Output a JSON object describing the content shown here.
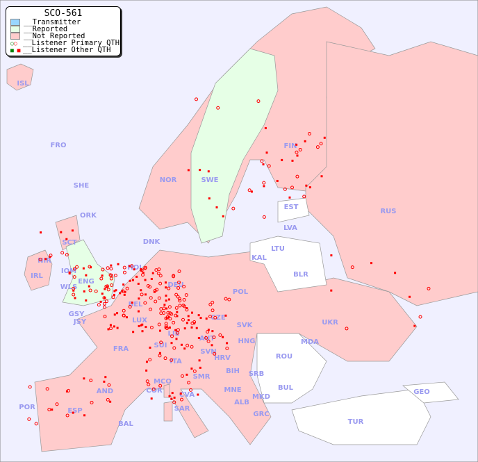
{
  "title": "SCO-561",
  "legend": [
    {
      "label": "__Transmitter",
      "color": "#99d6ff"
    },
    {
      "label": "__Reported",
      "color": "#e6ffe6"
    },
    {
      "label": "__Not Reported",
      "color": "#ffcccc"
    },
    {
      "label": "__Listener Primary QTH",
      "marker": "open-circle"
    },
    {
      "label": "__Listener Other QTH",
      "marker": "square"
    }
  ],
  "colors": {
    "sea": "#f0f0ff",
    "reported": "#e6ffe6",
    "not_reported": "#ffcccc",
    "no_data": "#ffffff",
    "marker": "#ff0000",
    "label": "#9a9af0"
  },
  "countries": {
    "reported": [
      "SWE",
      "ENG",
      "SCT",
      "WLS",
      "HOL"
    ],
    "white": [
      "LTU",
      "KAL",
      "BLR",
      "MDA",
      "ROU",
      "BUL",
      "TUR",
      "GEO",
      "EST"
    ]
  },
  "labels": [
    "ISL",
    "FRO",
    "SHE",
    "ORK",
    "NOR",
    "SWE",
    "FIN",
    "RUS",
    "EST",
    "LVA",
    "LTU",
    "KAL",
    "BLR",
    "DNK",
    "HOL",
    "DEU",
    "POL",
    "UKR",
    "IRL",
    "IOM",
    "WLS",
    "NIR",
    "GSY",
    "JSY",
    "BEL",
    "LUX",
    "FRA",
    "SUI",
    "LIE",
    "AUT",
    "CZE",
    "SVK",
    "HNG",
    "MDA",
    "ROU",
    "SVN",
    "HRV",
    "BIH",
    "SRB",
    "ITA",
    "MCO",
    "COR",
    "SMR",
    "CVA",
    "MNE",
    "ALB",
    "MKD",
    "BUL",
    "GRC",
    "TUR",
    "GEO",
    "AND",
    "POR",
    "ESP",
    "BAL",
    "SAR"
  ]
}
